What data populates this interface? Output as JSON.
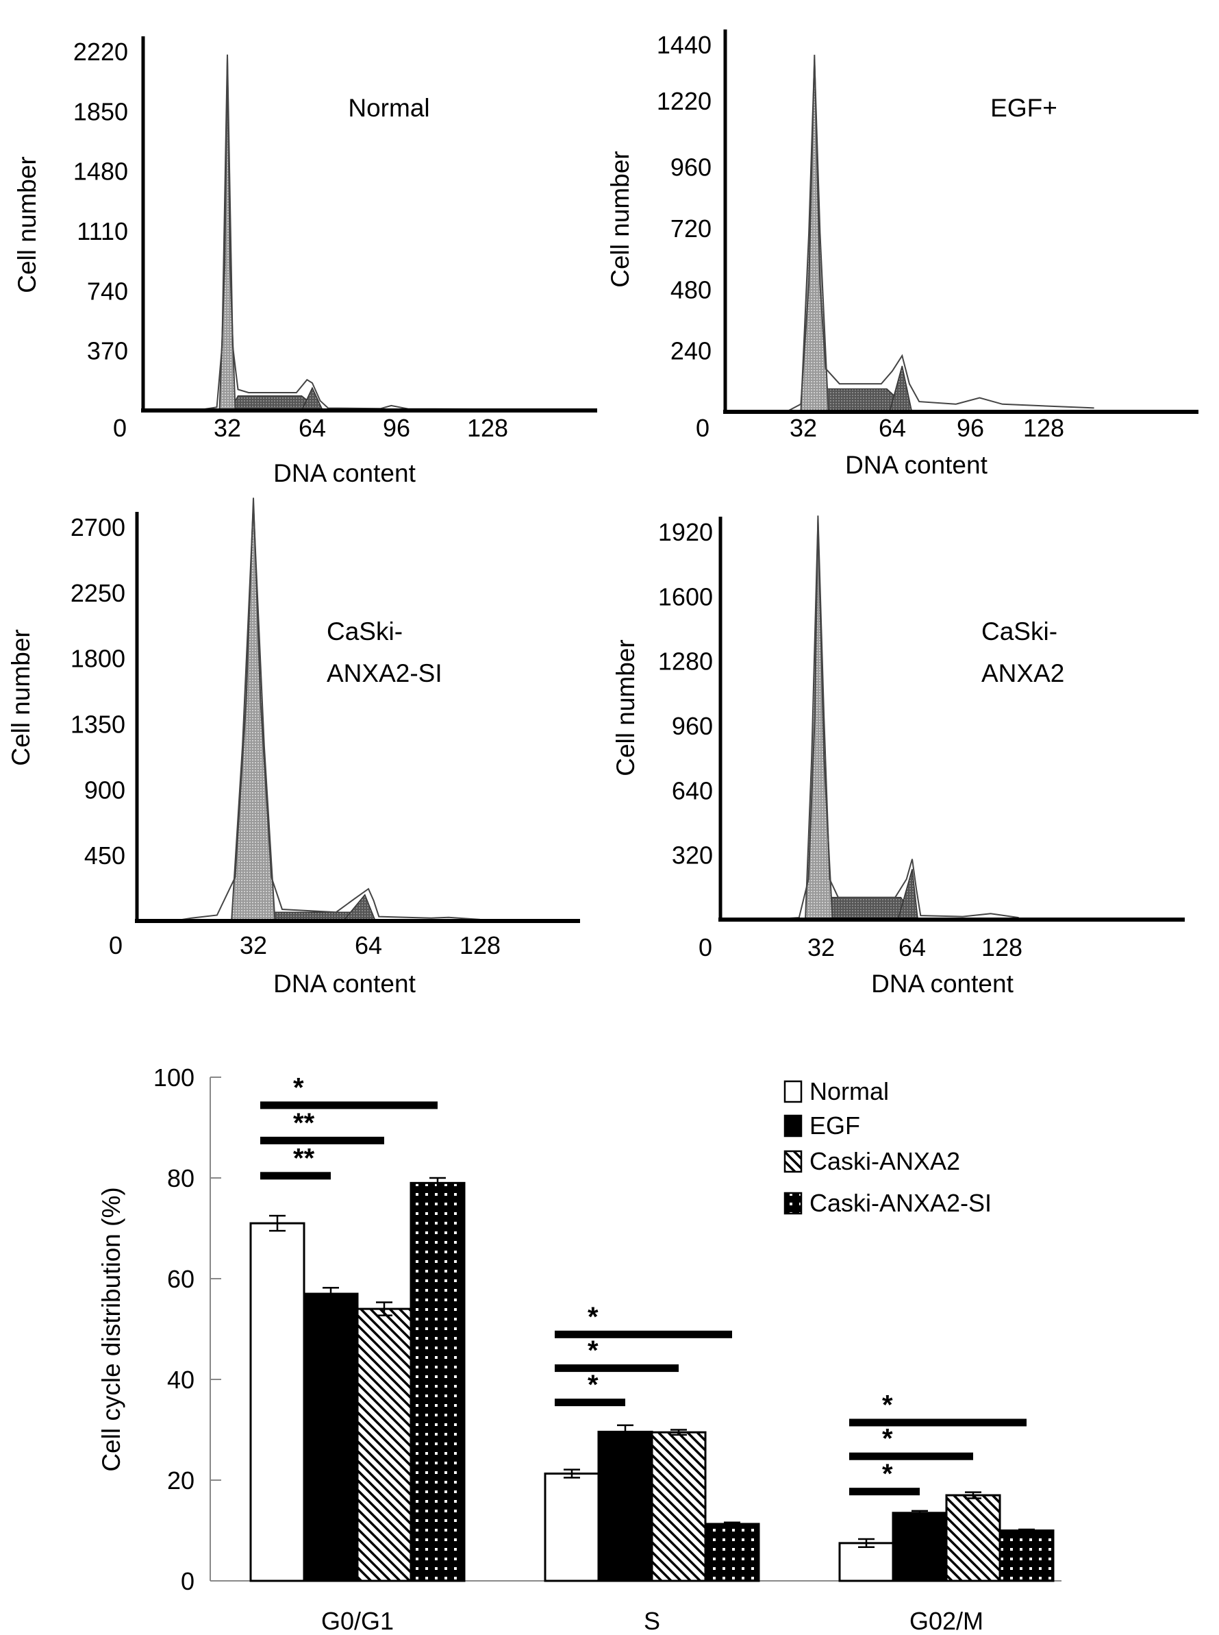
{
  "chart_data": [
    {
      "type": "area",
      "title": "Normal",
      "xlabel": "DNA content",
      "ylabel": "Cell number",
      "xticks": [
        "0",
        "32",
        "64",
        "96",
        "128"
      ],
      "yticks": [
        "370",
        "740",
        "1110",
        "1480",
        "1850",
        "2220"
      ],
      "ylim": [
        0,
        2220
      ],
      "envelope": [
        [
          20,
          0
        ],
        [
          28,
          20
        ],
        [
          30,
          400
        ],
        [
          32,
          2200
        ],
        [
          34,
          400
        ],
        [
          36,
          130
        ],
        [
          40,
          110
        ],
        [
          58,
          110
        ],
        [
          62,
          190
        ],
        [
          64,
          170
        ],
        [
          67,
          60
        ],
        [
          70,
          15
        ],
        [
          90,
          12
        ],
        [
          94,
          30
        ],
        [
          100,
          10
        ],
        [
          130,
          8
        ]
      ],
      "g1_peak": [
        [
          29,
          0
        ],
        [
          31,
          900
        ],
        [
          32,
          2180
        ],
        [
          33,
          900
        ],
        [
          35,
          0
        ]
      ],
      "s_phase": [
        [
          33,
          0
        ],
        [
          36,
          90
        ],
        [
          60,
          90
        ],
        [
          67,
          0
        ]
      ],
      "g2_peak": [
        [
          60,
          0
        ],
        [
          64,
          140
        ],
        [
          68,
          0
        ]
      ]
    },
    {
      "type": "area",
      "title": "EGF+",
      "xlabel": "DNA content",
      "ylabel": "Cell number",
      "xticks": [
        "0",
        "32",
        "64",
        "96",
        "128"
      ],
      "yticks": [
        "240",
        "480",
        "720",
        "960",
        "1220",
        "1440"
      ],
      "ylim": [
        0,
        1440
      ],
      "envelope": [
        [
          25,
          0
        ],
        [
          31,
          30
        ],
        [
          34,
          500
        ],
        [
          36,
          1400
        ],
        [
          38,
          500
        ],
        [
          40,
          170
        ],
        [
          45,
          110
        ],
        [
          60,
          110
        ],
        [
          64,
          160
        ],
        [
          68,
          220
        ],
        [
          71,
          110
        ],
        [
          75,
          40
        ],
        [
          90,
          30
        ],
        [
          100,
          55
        ],
        [
          110,
          30
        ],
        [
          150,
          15
        ]
      ],
      "g1_peak": [
        [
          31,
          0
        ],
        [
          34,
          700
        ],
        [
          36,
          1380
        ],
        [
          38,
          700
        ],
        [
          41,
          0
        ]
      ],
      "s_phase": [
        [
          34,
          0
        ],
        [
          40,
          90
        ],
        [
          62,
          90
        ],
        [
          72,
          0
        ]
      ],
      "g2_peak": [
        [
          63,
          0
        ],
        [
          68,
          180
        ],
        [
          72,
          0
        ]
      ]
    },
    {
      "type": "area",
      "title": "CaSki-ANXA2-SI",
      "title_lines": [
        "CaSki-",
        "ANXA2-SI"
      ],
      "xlabel": "DNA content",
      "ylabel": "Cell number",
      "xticks": [
        "0",
        "32",
        "64",
        "128"
      ],
      "yticks": [
        "450",
        "900",
        "1350",
        "1800",
        "2250",
        "2700"
      ],
      "ylim": [
        0,
        2700
      ],
      "envelope": [
        [
          10,
          0
        ],
        [
          15,
          20
        ],
        [
          22,
          40
        ],
        [
          27,
          300
        ],
        [
          30,
          1500
        ],
        [
          32,
          2900
        ],
        [
          34,
          1500
        ],
        [
          37,
          300
        ],
        [
          40,
          80
        ],
        [
          55,
          60
        ],
        [
          60,
          150
        ],
        [
          64,
          220
        ],
        [
          67,
          140
        ],
        [
          70,
          30
        ],
        [
          100,
          20
        ],
        [
          110,
          25
        ],
        [
          128,
          10
        ]
      ],
      "g1_peak": [
        [
          26,
          0
        ],
        [
          29,
          1200
        ],
        [
          32,
          2850
        ],
        [
          35,
          1200
        ],
        [
          38,
          0
        ]
      ],
      "s_phase": [
        [
          33,
          0
        ],
        [
          37,
          60
        ],
        [
          60,
          60
        ],
        [
          68,
          0
        ]
      ],
      "g2_peak": [
        [
          57,
          0
        ],
        [
          63,
          180
        ],
        [
          68,
          0
        ]
      ]
    },
    {
      "type": "area",
      "title": "CaSki-ANXA2",
      "title_lines": [
        "CaSki-",
        "ANXA2"
      ],
      "xlabel": "DNA content",
      "ylabel": "Cell number",
      "xticks": [
        "0",
        "32",
        "64",
        "128"
      ],
      "yticks": [
        "320",
        "640",
        "960",
        "1280",
        "1600",
        "1920"
      ],
      "ylim": [
        0,
        1920
      ],
      "envelope": [
        [
          15,
          0
        ],
        [
          25,
          10
        ],
        [
          28,
          200
        ],
        [
          30,
          1000
        ],
        [
          31,
          2000
        ],
        [
          33,
          1000
        ],
        [
          35,
          200
        ],
        [
          38,
          110
        ],
        [
          58,
          110
        ],
        [
          62,
          200
        ],
        [
          64,
          300
        ],
        [
          67,
          150
        ],
        [
          70,
          20
        ],
        [
          100,
          15
        ],
        [
          120,
          30
        ],
        [
          140,
          10
        ]
      ],
      "g1_peak": [
        [
          27,
          0
        ],
        [
          29,
          800
        ],
        [
          31,
          1980
        ],
        [
          33,
          800
        ],
        [
          36,
          0
        ]
      ],
      "s_phase": [
        [
          31,
          0
        ],
        [
          35,
          110
        ],
        [
          60,
          110
        ],
        [
          67,
          0
        ]
      ],
      "g2_peak": [
        [
          59,
          0
        ],
        [
          64,
          250
        ],
        [
          68,
          0
        ]
      ]
    },
    {
      "type": "bar",
      "ylabel": "Cell cycle distribution (%)",
      "xlabel": "",
      "categories": [
        "G0/G1",
        "S",
        "G02/M"
      ],
      "yticks": [
        "0",
        "20",
        "40",
        "60",
        "80",
        "100"
      ],
      "ylim": [
        0,
        100
      ],
      "legend_position": "top-right",
      "series": [
        {
          "name": "Normal",
          "fill": "white",
          "values": [
            71,
            21.3,
            7.5
          ],
          "errors": [
            1.5,
            0.8,
            0.8
          ]
        },
        {
          "name": "EGF",
          "fill": "black",
          "values": [
            57,
            29.6,
            13.5
          ],
          "errors": [
            1.2,
            1.3,
            0.4
          ]
        },
        {
          "name": "Caski-ANXA2",
          "fill": "hatched",
          "values": [
            54,
            29.5,
            17
          ],
          "errors": [
            1.3,
            0.5,
            0.6
          ]
        },
        {
          "name": "Caski-ANXA2-SI",
          "fill": "dotted",
          "values": [
            79,
            11.3,
            10
          ],
          "errors": [
            1.0,
            0.3,
            0.2
          ]
        }
      ],
      "significance": [
        {
          "category": 0,
          "to_series": 3,
          "y": 94.5,
          "label": "*"
        },
        {
          "category": 0,
          "to_series": 2,
          "y": 87.5,
          "label": "**"
        },
        {
          "category": 0,
          "to_series": 1,
          "y": 80.5,
          "label": "**"
        },
        {
          "category": 1,
          "to_series": 3,
          "y": 49,
          "label": "*"
        },
        {
          "category": 1,
          "to_series": 2,
          "y": 42.3,
          "label": "*"
        },
        {
          "category": 1,
          "to_series": 1,
          "y": 35.5,
          "label": "*"
        },
        {
          "category": 2,
          "to_series": 3,
          "y": 31.5,
          "label": "*"
        },
        {
          "category": 2,
          "to_series": 2,
          "y": 24.8,
          "label": "*"
        },
        {
          "category": 2,
          "to_series": 1,
          "y": 17.8,
          "label": "*"
        }
      ]
    }
  ]
}
